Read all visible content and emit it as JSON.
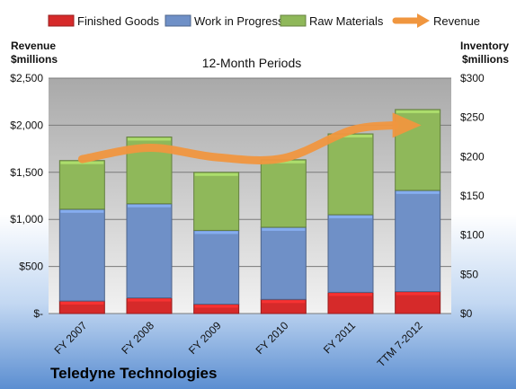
{
  "chart_data": {
    "type": "bar",
    "stacked": true,
    "title": "12-Month Periods",
    "categories": [
      "FY 2007",
      "FY 2008",
      "FY 2009",
      "FY 2010",
      "FY 2011",
      "TTM 7-2012"
    ],
    "series": [
      {
        "name": "Finished Goods",
        "color": "#d62a2a",
        "values": [
          16,
          20,
          12,
          18,
          27,
          28
        ]
      },
      {
        "name": "Work in Progress",
        "color": "#6f90c7",
        "values": [
          117,
          120,
          94,
          92,
          99,
          129
        ]
      },
      {
        "name": "Raw Materials",
        "color": "#8fb85a",
        "values": [
          62,
          85,
          74,
          86,
          103,
          103
        ]
      }
    ],
    "line_series": {
      "name": "Revenue",
      "color": "#f0963f",
      "values": [
        1640,
        1760,
        1660,
        1650,
        1945,
        2000
      ]
    },
    "left_axis": {
      "label_line1": "Revenue",
      "label_line2": "$millions",
      "min": 0,
      "max": 2500,
      "tick_labels": [
        "$-",
        "$500",
        "$1,000",
        "$1,500",
        "$2,000",
        "$2,500"
      ]
    },
    "right_axis": {
      "label_line1": "Inventory",
      "label_line2": "$millions",
      "min": 0,
      "max": 300,
      "tick_labels": [
        "$0",
        "$50",
        "$100",
        "$150",
        "$200",
        "$250",
        "$300"
      ]
    },
    "legend_position": "top",
    "grid": true
  },
  "footer": {
    "company": "Teledyne Technologies"
  }
}
